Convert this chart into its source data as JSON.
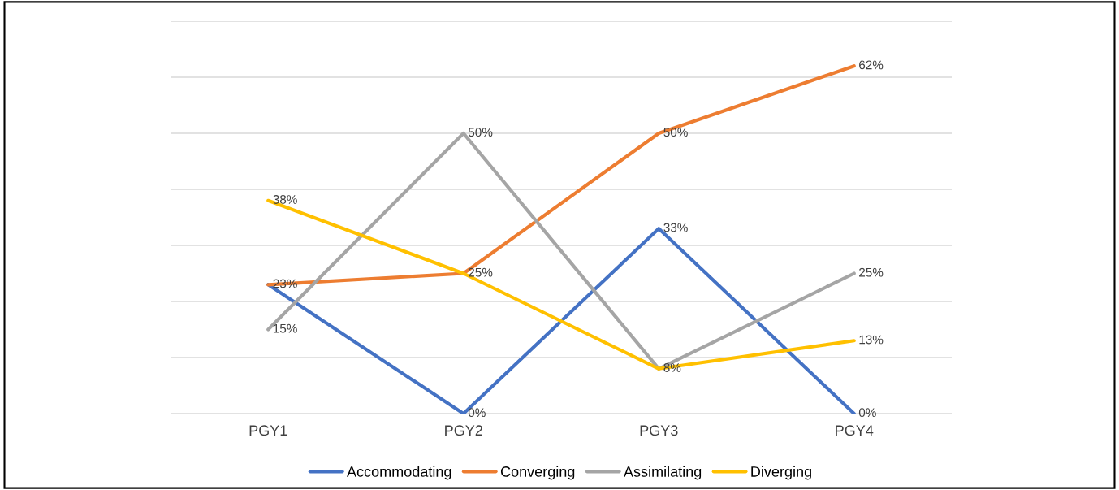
{
  "chart_data": {
    "type": "line",
    "categories": [
      "PGY1",
      "PGY2",
      "PGY3",
      "PGY4"
    ],
    "series": [
      {
        "name": "Accommodating",
        "color": "#4472c4",
        "values": [
          23,
          0,
          33,
          0
        ],
        "value_labels": [
          null,
          "0%",
          "33%",
          "0%"
        ]
      },
      {
        "name": "Converging",
        "color": "#ed7d31",
        "values": [
          23,
          25,
          50,
          62
        ],
        "value_labels": [
          "23%",
          null,
          "50%",
          "62%"
        ]
      },
      {
        "name": "Assimilating",
        "color": "#a5a5a5",
        "values": [
          15,
          50,
          8,
          25
        ],
        "value_labels": [
          "15%",
          "50%",
          null,
          "25%"
        ]
      },
      {
        "name": "Diverging",
        "color": "#ffc000",
        "values": [
          38,
          25,
          8,
          13
        ],
        "value_labels": [
          "38%",
          "25%",
          "8%",
          "13%"
        ]
      }
    ],
    "ylim": [
      0,
      70
    ],
    "yticks": [
      {
        "value": 0,
        "label": null
      },
      {
        "value": 10,
        "label": null
      },
      {
        "value": 20,
        "label": null
      },
      {
        "value": 30,
        "label": null
      },
      {
        "value": 40,
        "label": null
      },
      {
        "value": 50,
        "label": null
      },
      {
        "value": 60,
        "label": null
      },
      {
        "value": 70,
        "label": null
      }
    ],
    "tick_labels": "x",
    "grid": "y",
    "legend": "bottom",
    "marker": "none",
    "line_style": "solid"
  }
}
